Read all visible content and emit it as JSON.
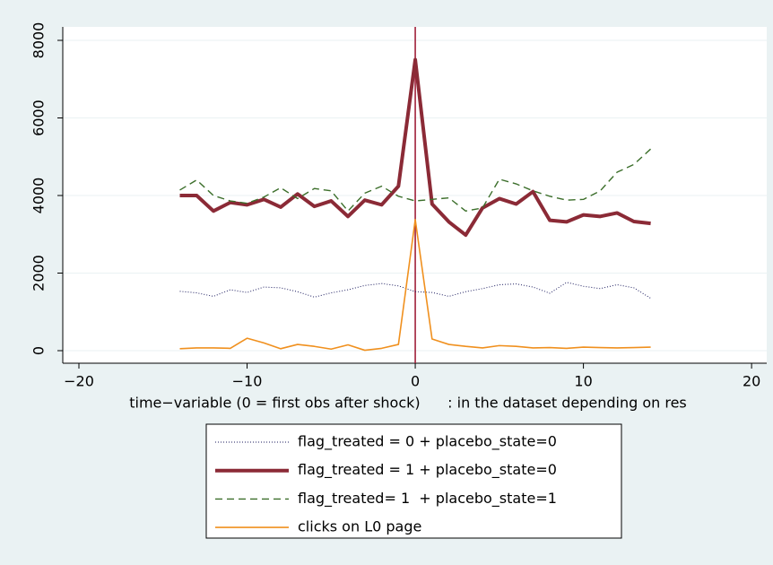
{
  "chart_data": {
    "type": "line",
    "x": [
      -14,
      -13,
      -12,
      -11,
      -10,
      -9,
      -8,
      -7,
      -6,
      -5,
      -4,
      -3,
      -2,
      -1,
      0,
      1,
      2,
      3,
      4,
      5,
      6,
      7,
      8,
      9,
      10,
      11,
      12,
      13,
      14
    ],
    "series": [
      {
        "name": "flag_treated = 0 + placebo_state=0",
        "color": "#1a1a5e",
        "style": "dotted",
        "width": 1,
        "values": [
          1530,
          1490,
          1400,
          1570,
          1500,
          1640,
          1620,
          1520,
          1380,
          1490,
          1570,
          1680,
          1730,
          1670,
          1520,
          1500,
          1400,
          1520,
          1600,
          1700,
          1720,
          1640,
          1480,
          1760,
          1660,
          1600,
          1700,
          1620,
          1350
        ]
      },
      {
        "name": "flag_treated = 1 + placebo_state=0",
        "color": "#8b2a36",
        "style": "solid",
        "width": 4,
        "values": [
          4000,
          4000,
          3600,
          3820,
          3760,
          3900,
          3700,
          4040,
          3720,
          3860,
          3460,
          3880,
          3760,
          4240,
          7500,
          3780,
          3320,
          2980,
          3680,
          3920,
          3780,
          4100,
          3360,
          3320,
          3500,
          3460,
          3550,
          3330,
          3280
        ]
      },
      {
        "name": "flag_treated= 1  + placebo_state=1",
        "color": "#3b6e2a",
        "style": "dashed",
        "width": 1.4,
        "values": [
          4140,
          4400,
          4000,
          3860,
          3800,
          3960,
          4200,
          3920,
          4180,
          4120,
          3600,
          4060,
          4240,
          3980,
          3860,
          3900,
          3940,
          3600,
          3680,
          4420,
          4300,
          4120,
          3980,
          3880,
          3900,
          4120,
          4600,
          4800,
          5200
        ]
      },
      {
        "name": "clicks on L0 page",
        "color": "#f0901e",
        "style": "solid",
        "width": 1.6,
        "values": [
          50,
          70,
          70,
          60,
          320,
          200,
          50,
          160,
          110,
          40,
          150,
          10,
          60,
          160,
          3380,
          300,
          160,
          110,
          70,
          130,
          110,
          70,
          80,
          60,
          90,
          80,
          70,
          80,
          90
        ]
      }
    ],
    "xlabel": "time−variable (0 = first obs after shock)      : in the dataset depending on res",
    "xlim": [
      -20.96,
      20.9
    ],
    "xticks": [
      {
        "value": -20,
        "label": "−20"
      },
      {
        "value": -10,
        "label": "−10"
      },
      0,
      10,
      20
    ],
    "ylim": [
      -324,
      8347
    ],
    "yticks": [
      0,
      2000,
      4000,
      6000,
      8000
    ],
    "xline": 0,
    "xline_color": "#a0203a",
    "grid": true
  }
}
